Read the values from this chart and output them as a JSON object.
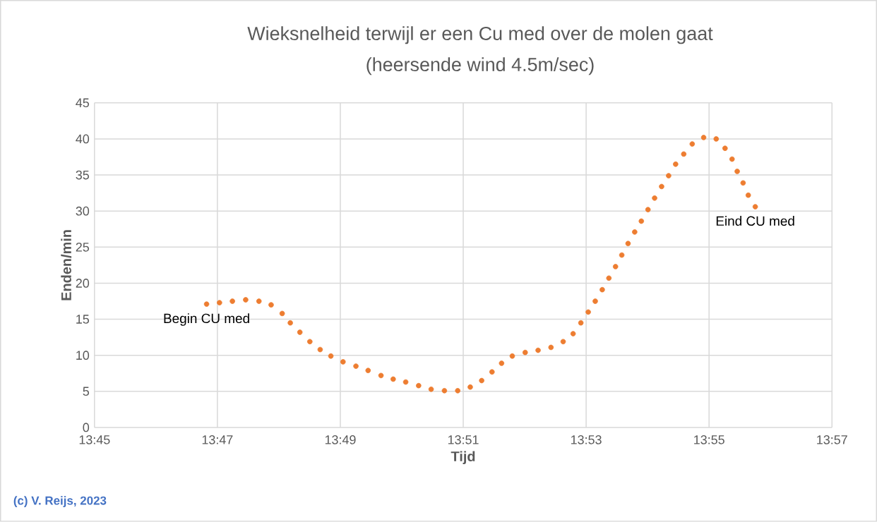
{
  "chart_data": {
    "type": "scatter",
    "title": "Wieksnelheid terwijl er een Cu med over de molen gaat",
    "subtitle": "(heersende wind 4.5m/sec)",
    "xlabel": "Tijd",
    "ylabel": "Enden/min",
    "x": [
      13.7804,
      13.7839,
      13.7874,
      13.791,
      13.7946,
      13.7979,
      13.8009,
      13.8031,
      13.8057,
      13.8084,
      13.8112,
      13.8141,
      13.8174,
      13.8209,
      13.8242,
      13.8277,
      13.831,
      13.8344,
      13.8379,
      13.8413,
      13.8449,
      13.8485,
      13.8519,
      13.855,
      13.8578,
      13.8604,
      13.8633,
      13.8668,
      13.8703,
      13.8738,
      13.8771,
      13.8798,
      13.8819,
      13.8839,
      13.8858,
      13.8877,
      13.8895,
      13.8913,
      13.893,
      13.8947,
      13.8965,
      13.8983,
      13.9001,
      13.9019,
      13.9038,
      13.9057,
      13.9076,
      13.9098,
      13.9121,
      13.9152,
      13.9186,
      13.921,
      13.9229,
      13.9243,
      13.9259,
      13.9273,
      13.9292
    ],
    "series": [
      {
        "color": "#ed7d31",
        "values": [
          17.1,
          17.3,
          17.5,
          17.7,
          17.5,
          17.0,
          15.8,
          14.5,
          13.2,
          11.9,
          10.8,
          9.9,
          9.1,
          8.5,
          7.9,
          7.2,
          6.7,
          6.3,
          5.8,
          5.3,
          5.1,
          5.1,
          5.6,
          6.5,
          7.7,
          8.9,
          9.9,
          10.4,
          10.7,
          11.1,
          11.9,
          13.0,
          14.5,
          16.0,
          17.5,
          19.1,
          20.7,
          22.3,
          23.9,
          25.5,
          27.1,
          28.6,
          30.2,
          31.8,
          33.4,
          34.9,
          36.5,
          37.9,
          39.3,
          40.2,
          40.0,
          38.7,
          37.2,
          35.5,
          33.9,
          32.2,
          30.6
        ]
      }
    ],
    "xlim": [
      13.75,
      13.95
    ],
    "xticks": [
      {
        "value": 13.75,
        "label": "13:45"
      },
      {
        "value": 13.78333,
        "label": "13:47"
      },
      {
        "value": 13.81667,
        "label": "13:49"
      },
      {
        "value": 13.85,
        "label": "13:51"
      },
      {
        "value": 13.88333,
        "label": "13:53"
      },
      {
        "value": 13.91667,
        "label": "13:55"
      },
      {
        "value": 13.95,
        "label": "13:57"
      }
    ],
    "ylim": [
      0,
      45
    ],
    "yticks": [
      0,
      5,
      10,
      15,
      20,
      25,
      30,
      35,
      40,
      45
    ],
    "grid": true,
    "marker": "circle",
    "annotations": [
      {
        "text": "Begin CU med",
        "x": 13.7804,
        "y": 17.1
      },
      {
        "text": "Eind CU med",
        "x": 13.9292,
        "y": 30.6
      },
      "(c) V. Reijs, 2023"
    ]
  }
}
